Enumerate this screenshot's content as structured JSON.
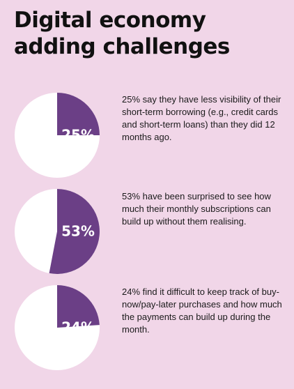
{
  "title": {
    "line1": "Digital economy",
    "line2": "adding challenges"
  },
  "colors": {
    "background": "#f1d6e8",
    "accent": "#6b3f86",
    "pie_base": "#ffffff",
    "label": "#ffffff"
  },
  "chart_data": {
    "type": "pie",
    "items": [
      {
        "value": 25,
        "label": "25%",
        "text": "25% say they have less visibility of their short-term borrowing (e.g., credit cards and short-term loans) than they did 12 months ago."
      },
      {
        "value": 53,
        "label": "53%",
        "text": "53% have been surprised to see how much their monthly subscriptions can build up without them realising."
      },
      {
        "value": 24,
        "label": "24%",
        "text": "24% find it difficult to keep track of buy-now/pay-later purchases and how much the payments can build up during the month."
      }
    ]
  }
}
